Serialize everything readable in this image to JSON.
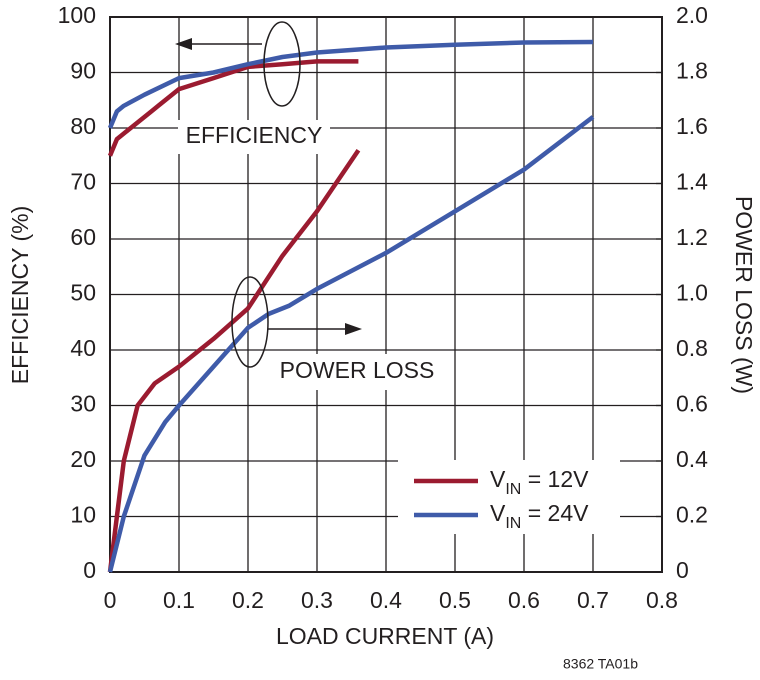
{
  "chart_data": {
    "type": "line",
    "xlabel": "LOAD CURRENT (A)",
    "ylabel": "EFFICIENCY (%)",
    "y2label": "POWER LOSS (W)",
    "xlim": [
      0,
      0.8
    ],
    "xticks": [
      0,
      0.1,
      0.2,
      0.3,
      0.4,
      0.5,
      0.6,
      0.7,
      0.8
    ],
    "ylim": [
      0,
      100
    ],
    "yticks": [
      0,
      10,
      20,
      30,
      40,
      50,
      60,
      70,
      80,
      90,
      100
    ],
    "y2lim": [
      0,
      2.0
    ],
    "y2ticks": [
      0,
      0.2,
      0.4,
      0.6,
      0.8,
      {
        "value": 1.0,
        "label": "1.0"
      },
      1.2,
      1.4,
      1.6,
      1.8,
      {
        "value": 2.0,
        "label": "2.0"
      }
    ],
    "grid": true,
    "legend": "lower right",
    "annotations": [
      "EFFICIENCY",
      "POWER LOSS",
      "8362 TA01b"
    ],
    "series": [
      {
        "name": [
          "V",
          "IN",
          " = 12V"
        ],
        "color": "#9b1b30",
        "x": [
          0,
          0.01,
          0.03,
          0.06,
          0.07,
          0.1,
          0.15,
          0.2,
          0.25,
          0.3,
          0.36
        ],
        "values": [
          75,
          78,
          80,
          83,
          84,
          87,
          89,
          91,
          91.5,
          92,
          92
        ]
      },
      {
        "name": [
          "V",
          "IN",
          " = 24V"
        ],
        "color": "#3f5ba9",
        "x": [
          0,
          0.01,
          0.02,
          0.05,
          0.1,
          0.15,
          0.2,
          0.25,
          0.3,
          0.4,
          0.5,
          0.6,
          0.7
        ],
        "values": [
          80,
          83,
          84,
          86,
          89,
          90,
          91.5,
          92.8,
          93.6,
          94.5,
          95,
          95.4,
          95.5
        ]
      },
      {
        "color": "#9b1b30",
        "axis": "y2",
        "x": [
          0,
          0.02,
          0.04,
          0.065,
          0.1,
          0.15,
          0.2,
          0.25,
          0.3,
          0.36
        ],
        "values": [
          0,
          0.4,
          0.6,
          0.68,
          0.74,
          0.84,
          0.95,
          1.14,
          1.3,
          1.52
        ]
      },
      {
        "color": "#3f5ba9",
        "axis": "y2",
        "x": [
          0,
          0.02,
          0.05,
          0.08,
          0.1,
          0.15,
          0.2,
          0.23,
          0.26,
          0.3,
          0.4,
          0.5,
          0.6,
          0.7
        ],
        "values": [
          0,
          0.2,
          0.42,
          0.54,
          0.6,
          0.74,
          0.88,
          0.93,
          0.96,
          1.02,
          1.15,
          1.3,
          1.45,
          1.64
        ]
      }
    ]
  }
}
